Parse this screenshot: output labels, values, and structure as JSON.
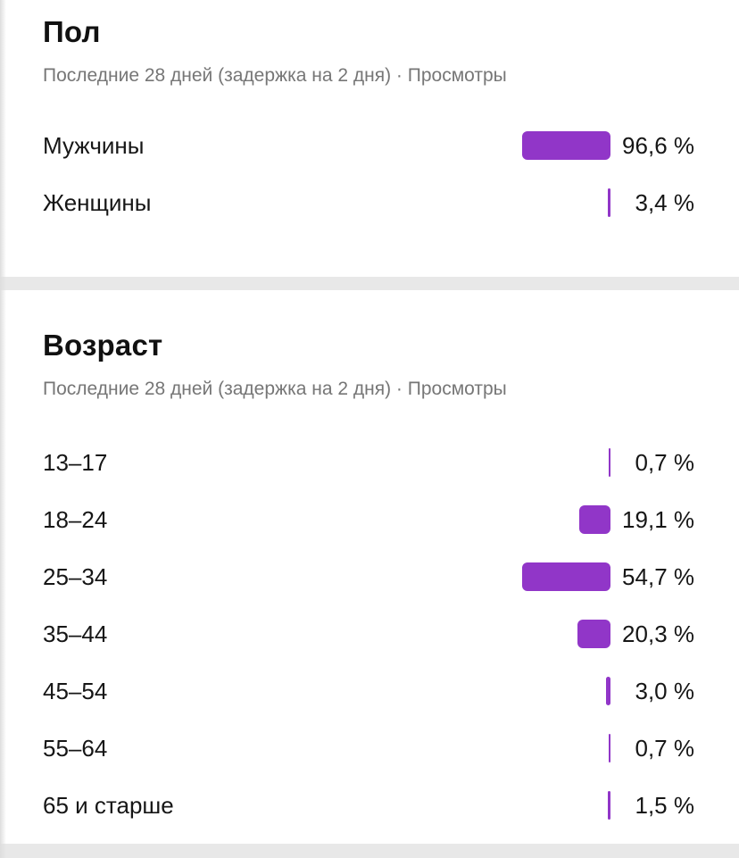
{
  "colors": {
    "bar": "#9136c8",
    "title_text": "#111111",
    "subtitle_text": "#767676",
    "row_text": "#161616",
    "divider": "#e8e8e8",
    "card_background": "#ffffff"
  },
  "sections": [
    {
      "title": "Пол",
      "subtitle": "Последние 28 дней (задержка на 2 дня) · Просмотры",
      "max_value": 96.6,
      "rows": [
        {
          "label": "Мужчины",
          "value": 96.6,
          "display": "96,6 %"
        },
        {
          "label": "Женщины",
          "value": 3.4,
          "display": "3,4 %"
        }
      ]
    },
    {
      "title": "Возраст",
      "subtitle": "Последние 28 дней (задержка на 2 дня) · Просмотры",
      "max_value": 54.7,
      "rows": [
        {
          "label": "13–17",
          "value": 0.7,
          "display": "0,7 %"
        },
        {
          "label": "18–24",
          "value": 19.1,
          "display": "19,1 %"
        },
        {
          "label": "25–34",
          "value": 54.7,
          "display": "54,7 %"
        },
        {
          "label": "35–44",
          "value": 20.3,
          "display": "20,3 %"
        },
        {
          "label": "45–54",
          "value": 3.0,
          "display": "3,0 %"
        },
        {
          "label": "55–64",
          "value": 0.7,
          "display": "0,7 %"
        },
        {
          "label": "65 и старше",
          "value": 1.5,
          "display": "1,5 %"
        }
      ]
    }
  ],
  "chart_data": [
    {
      "type": "bar",
      "orientation": "horizontal",
      "title": "Пол",
      "subtitle": "Последние 28 дней (задержка на 2 дня) · Просмотры",
      "categories": [
        "Мужчины",
        "Женщины"
      ],
      "values": [
        96.6,
        3.4
      ],
      "value_labels": [
        "96,6 %",
        "3,4 %"
      ],
      "unit": "%",
      "bar_color": "#9136c8",
      "bar_scale": "relative_to_max",
      "xlim": [
        0,
        96.6
      ],
      "grid": false,
      "legend": false
    },
    {
      "type": "bar",
      "orientation": "horizontal",
      "title": "Возраст",
      "subtitle": "Последние 28 дней (задержка на 2 дня) · Просмотры",
      "categories": [
        "13–17",
        "18–24",
        "25–34",
        "35–44",
        "45–54",
        "55–64",
        "65 и старше"
      ],
      "values": [
        0.7,
        19.1,
        54.7,
        20.3,
        3.0,
        0.7,
        1.5
      ],
      "value_labels": [
        "0,7 %",
        "19,1 %",
        "54,7 %",
        "20,3 %",
        "3,0 %",
        "0,7 %",
        "1,5 %"
      ],
      "unit": "%",
      "bar_color": "#9136c8",
      "bar_scale": "relative_to_max",
      "xlim": [
        0,
        54.7
      ],
      "grid": false,
      "legend": false
    }
  ]
}
